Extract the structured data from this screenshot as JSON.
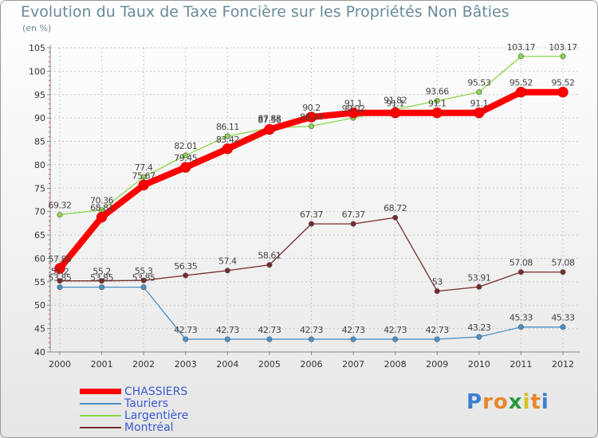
{
  "title": "Evolution du Taux de Taxe Foncière sur les Propriétés Non Bâties",
  "unit_label": "(en %)",
  "brand": {
    "letters": [
      "P",
      "r",
      "o",
      "x",
      "i",
      "t",
      "i"
    ],
    "colors": [
      "#3b7fd0",
      "#e8862a",
      "#e8862a",
      "#2a9a3a",
      "#d8c020",
      "#e8862a",
      "#3b7fd0"
    ]
  },
  "chart_data": {
    "type": "line",
    "title": "Evolution du Taux de Taxe Foncière sur les Propriétés Non Bâties",
    "ylabel": "(en %)",
    "xlabel": "",
    "ylim": [
      40,
      105
    ],
    "yticks": [
      40,
      45,
      50,
      55,
      60,
      65,
      70,
      75,
      80,
      85,
      90,
      95,
      100,
      105
    ],
    "categories": [
      "2000",
      "2001",
      "2002",
      "2003",
      "2004",
      "2005",
      "2006",
      "2007",
      "2008",
      "2009",
      "2010",
      "2011",
      "2012"
    ],
    "grid": true,
    "series": [
      {
        "name": "CHASSIERS",
        "color": "#ff0000",
        "width": "thick",
        "values": [
          57.85,
          68.81,
          75.67,
          79.45,
          83.42,
          87.56,
          90.2,
          91.1,
          91.1,
          91.1,
          91.1,
          95.52,
          95.52
        ],
        "labels": [
          "57.85",
          "68.81",
          "75.67",
          "79.45",
          "83.42",
          "87.56",
          "90.2",
          "91.1",
          "91.1",
          "91.1",
          "91.1",
          "95.52",
          "95.52"
        ]
      },
      {
        "name": "Tauriers",
        "color": "#4a90c8",
        "width": "thin",
        "values": [
          53.85,
          53.85,
          53.85,
          42.73,
          42.73,
          42.73,
          42.73,
          42.73,
          42.73,
          42.73,
          43.23,
          45.33,
          45.33
        ],
        "labels": [
          "53.85",
          "53.85",
          "53.85",
          "42.73",
          "42.73",
          "42.73",
          "42.73",
          "42.73",
          "42.73",
          "42.73",
          "43.23",
          "45.33",
          "45.33"
        ]
      },
      {
        "name": "Largentière",
        "color": "#8ed64a",
        "width": "thin",
        "values": [
          69.32,
          70.36,
          77.4,
          82.01,
          86.11,
          87.88,
          88.24,
          90.02,
          91.82,
          93.66,
          95.53,
          103.17,
          103.17
        ],
        "labels": [
          "69.32",
          "70.36",
          "77.4",
          "82.01",
          "86.11",
          "87.88",
          "88.24",
          "90.02",
          "91.82",
          "93.66",
          "95.53",
          "103.17",
          "103.17"
        ]
      },
      {
        "name": "Montréal",
        "color": "#7a2a2a",
        "width": "thin",
        "values": [
          55.2,
          55.2,
          55.3,
          56.35,
          57.4,
          58.61,
          67.37,
          67.37,
          68.72,
          53,
          53.91,
          57.08,
          57.08
        ],
        "labels": [
          "55.2",
          "55.2",
          "55.3",
          "56.35",
          "57.4",
          "58.61",
          "67.37",
          "67.37",
          "68.72",
          "53",
          "53.91",
          "57.08",
          "57.08"
        ]
      }
    ]
  }
}
